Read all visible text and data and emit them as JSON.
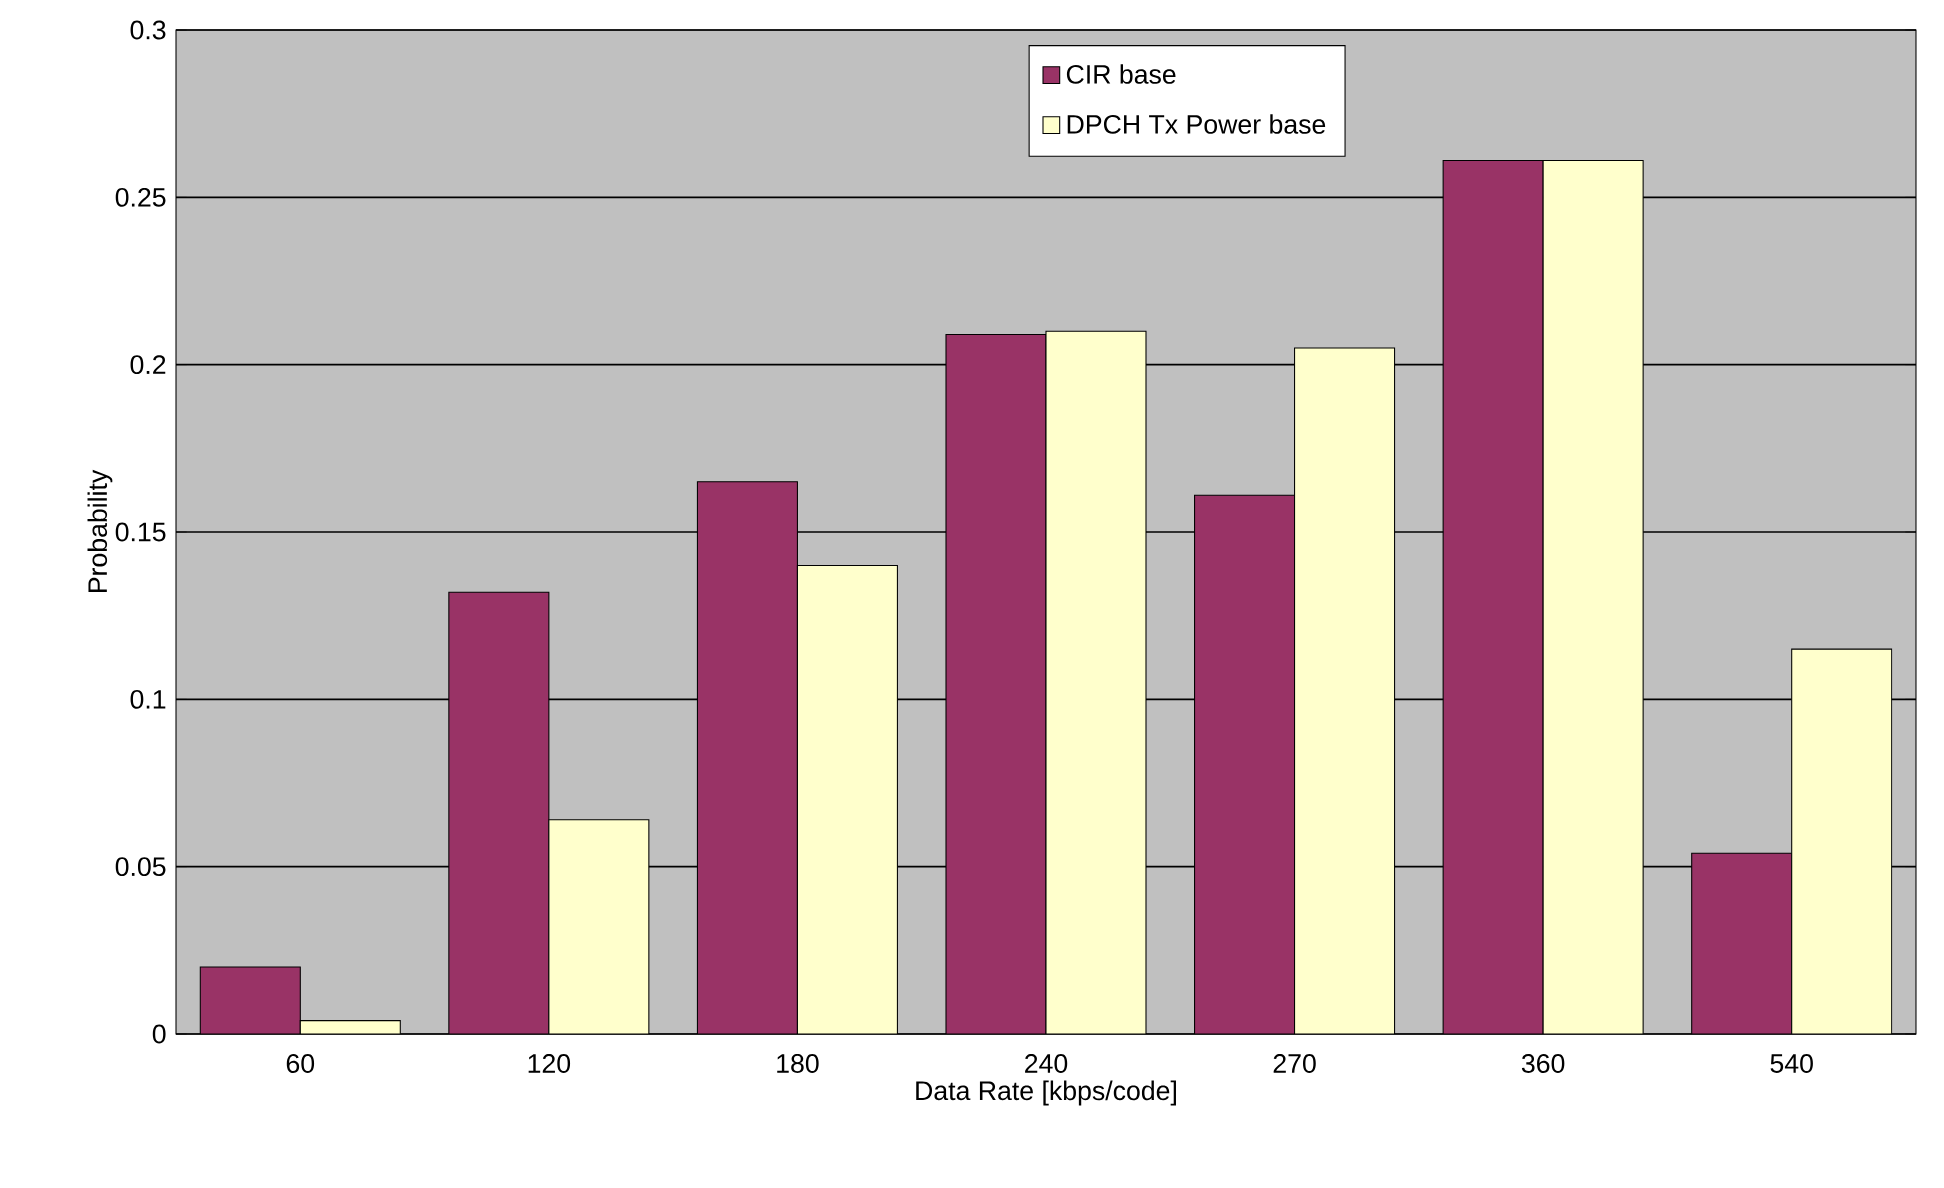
{
  "chart_data": {
    "type": "bar",
    "xlabel": "Data Rate [kbps/code]",
    "ylabel": "Probability",
    "categories": [
      "60",
      "120",
      "180",
      "240",
      "270",
      "360",
      "540"
    ],
    "series": [
      {
        "name": "CIR base",
        "color": "#993366",
        "values": [
          0.02,
          0.132,
          0.165,
          0.209,
          0.161,
          0.261,
          0.054
        ]
      },
      {
        "name": "DPCH Tx Power base",
        "color": "#ffffcc",
        "values": [
          0.004,
          0.064,
          0.14,
          0.21,
          0.205,
          0.261,
          0.115
        ]
      }
    ],
    "ylim": [
      0,
      0.3
    ],
    "yticks": [
      0,
      0.05,
      0.1,
      0.15,
      0.2,
      0.25,
      0.3
    ],
    "grid": "y",
    "legend": "top"
  }
}
